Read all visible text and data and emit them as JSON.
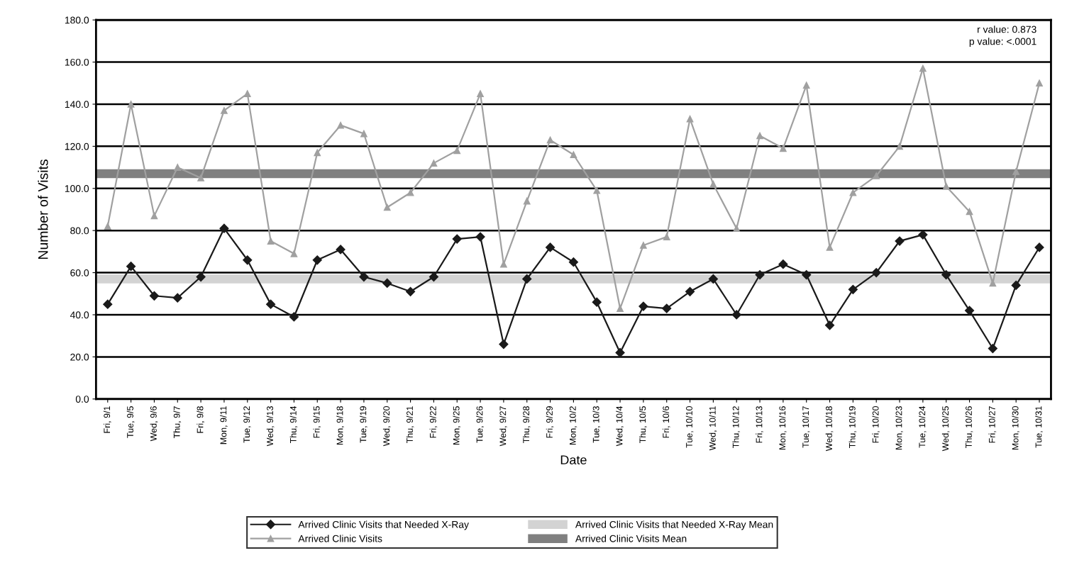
{
  "chart_data": {
    "type": "line",
    "xlabel": "Date",
    "ylabel": "Number of Visits",
    "categories": [
      "Fri, 9/1",
      "Tue, 9/5",
      "Wed, 9/6",
      "Thu, 9/7",
      "Fri, 9/8",
      "Mon, 9/11",
      "Tue, 9/12",
      "Wed, 9/13",
      "Thu, 9/14",
      "Fri, 9/15",
      "Mon, 9/18",
      "Tue, 9/19",
      "Wed, 9/20",
      "Thu, 9/21",
      "Fri, 9/22",
      "Mon, 9/25",
      "Tue, 9/26",
      "Wed, 9/27",
      "Thu, 9/28",
      "Fri, 9/29",
      "Mon, 10/2",
      "Tue, 10/3",
      "Wed, 10/4",
      "Thu, 10/5",
      "Fri, 10/6",
      "Tue, 10/10",
      "Wed, 10/11",
      "Thu, 10/12",
      "Fri, 10/13",
      "Mon, 10/16",
      "Tue, 10/17",
      "Wed, 10/18",
      "Thu, 10/19",
      "Fri, 10/20",
      "Mon, 10/23",
      "Tue, 10/24",
      "Wed, 10/25",
      "Thu, 10/26",
      "Fri, 10/27",
      "Mon, 10/30",
      "Tue, 10/31"
    ],
    "series": [
      {
        "name": "Arrived Clinic Visits that Needed X-Ray",
        "color": "#1a1a1a",
        "marker": "diamond",
        "values": [
          45,
          63,
          49,
          48,
          58,
          81,
          66,
          45,
          39,
          66,
          71,
          58,
          55,
          51,
          58,
          76,
          77,
          26,
          57,
          72,
          65,
          46,
          22,
          44,
          43,
          51,
          57,
          40,
          59,
          64,
          59,
          35,
          52,
          60,
          75,
          78,
          59,
          42,
          24,
          54,
          72
        ]
      },
      {
        "name": "Arrived Clinic Visits",
        "color": "#a0a0a0",
        "marker": "triangle",
        "values": [
          82,
          140,
          87,
          110,
          105,
          137,
          145,
          75,
          69,
          117,
          130,
          126,
          91,
          98,
          112,
          118,
          145,
          64,
          94,
          123,
          116,
          99,
          43,
          73,
          77,
          133,
          102,
          81,
          125,
          119,
          149,
          72,
          98,
          106,
          120,
          157,
          101,
          89,
          55,
          108,
          150
        ]
      }
    ],
    "ref_lines": [
      {
        "axis": "y",
        "value": 57,
        "label": "Arrived Clinic Visits that Needed X-Ray Mean",
        "color": "#d3d3d3"
      },
      {
        "axis": "y",
        "value": 107,
        "label": "Arrived Clinic Visits Mean",
        "color": "#808080"
      }
    ],
    "annotations": [
      "r value: 0.873",
      "p value: <.0001"
    ],
    "ylim": [
      0,
      180
    ],
    "yticks": [
      {
        "value": 0,
        "label": "0.0"
      },
      {
        "value": 20,
        "label": "20.0"
      },
      {
        "value": 40,
        "label": "40.0"
      },
      {
        "value": 60,
        "label": "60.0"
      },
      {
        "value": 80,
        "label": "80.0"
      },
      {
        "value": 100,
        "label": "100.0"
      },
      {
        "value": 120,
        "label": "120.0"
      },
      {
        "value": 140,
        "label": "140.0"
      },
      {
        "value": 160,
        "label": "160.0"
      },
      {
        "value": 180,
        "label": "180.0"
      }
    ],
    "grid": "y",
    "legend": "bottom",
    "line_style": "solid"
  }
}
